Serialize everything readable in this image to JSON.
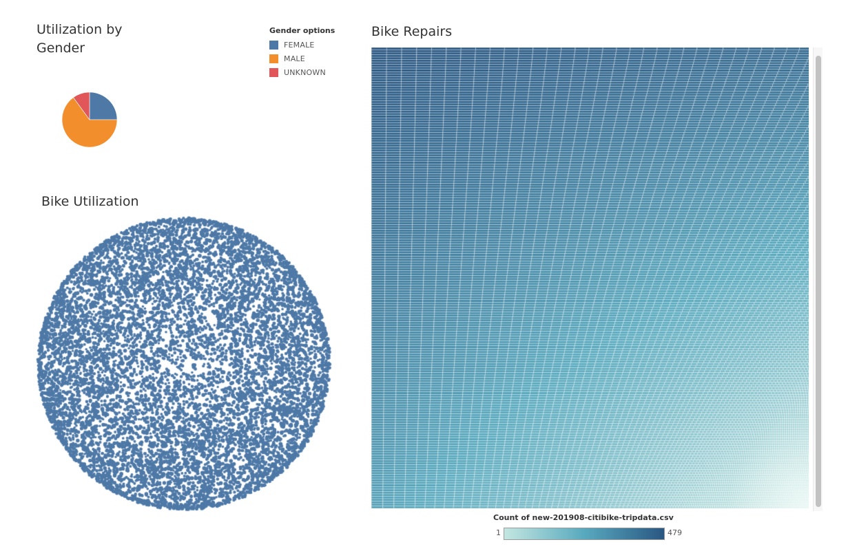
{
  "colors": {
    "female": "#4e79a7",
    "male": "#f28e2b",
    "unknown": "#e15759",
    "bubble": "#4e79a7",
    "ramp_low": "#c4e6e1",
    "ramp_mid": "#58a9be",
    "ramp_high": "#2a5783"
  },
  "chart_data": [
    {
      "type": "pie",
      "title": "Utilization by Gender",
      "legend_title": "Gender options",
      "legend_position": "top-right",
      "categories": [
        "FEMALE",
        "MALE",
        "UNKNOWN"
      ],
      "values": [
        25,
        65,
        10
      ]
    },
    {
      "type": "scatter",
      "subtype": "packed-bubble",
      "title": "Bike Utilization",
      "note_count": 9000,
      "shape": "circle"
    },
    {
      "type": "heatmap",
      "subtype": "treemap",
      "title": "Bike Repairs",
      "color_legend_title": "Count of new-201908-citibike-tripdata.csv",
      "color_range": [
        1,
        479
      ],
      "color_min_label": "1",
      "color_max_label": "479"
    }
  ]
}
